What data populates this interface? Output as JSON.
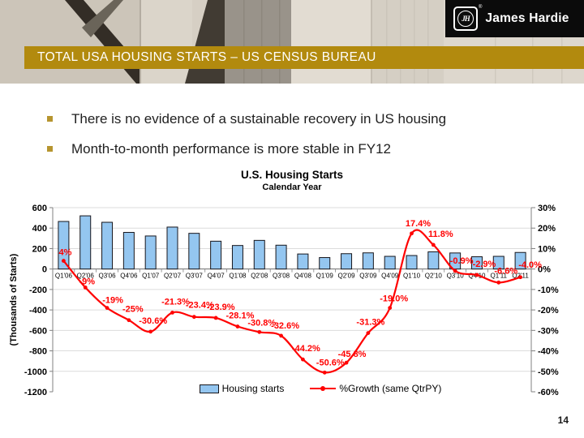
{
  "header": {
    "logo": {
      "monogram": "JH",
      "registered": "®",
      "brand": "James Hardie"
    },
    "title_bar": "TOTAL USA HOUSING STARTS – US CENSUS BUREAU"
  },
  "bullets": [
    "There is no evidence of a sustainable recovery in US housing",
    "Month-to-month performance is more stable in FY12"
  ],
  "page_number": "14",
  "chart_data": {
    "type": "bar+line",
    "title": "U.S. Housing Starts",
    "subtitle": "Calendar Year",
    "left_axis": {
      "label": "(Thousands of Starts)",
      "min": -1200,
      "max": 600,
      "step": 200
    },
    "right_axis": {
      "min": -60,
      "max": 30,
      "step": 10,
      "format": "percent"
    },
    "grid": true,
    "legend_position": "bottom",
    "categories": [
      "Q1'06",
      "Q2'06",
      "Q3'06",
      "Q4'06",
      "Q1'07",
      "Q2'07",
      "Q3'07",
      "Q4'07",
      "Q1'08",
      "Q2'08",
      "Q3'08",
      "Q4'08",
      "Q1'09",
      "Q2'09",
      "Q3'09",
      "Q4'09",
      "Q1'10",
      "Q2'10",
      "Q3'10",
      "Q4'10",
      "Q1'11",
      "Q2'11"
    ],
    "series": [
      {
        "name": "Housing starts",
        "type": "bar",
        "axis": "left",
        "color": "#94C6F0",
        "values": [
          465,
          520,
          457,
          358,
          323,
          410,
          349,
          272,
          230,
          280,
          233,
          147,
          112,
          150,
          158,
          124,
          132,
          168,
          157,
          120,
          124,
          162
        ]
      },
      {
        "name": "%Growth (same QtrPY)",
        "type": "line",
        "axis": "right",
        "color": "#FF0000",
        "values": [
          4,
          -9,
          -19,
          -25,
          -30.6,
          -21.3,
          -23.4,
          -23.9,
          -28.1,
          -30.8,
          -32.6,
          -44.2,
          -50.6,
          -45.8,
          -31.3,
          -19.0,
          17.4,
          11.8,
          -0.9,
          -2.9,
          -6.6,
          -4.0
        ],
        "labels": [
          "4%",
          "-9%",
          "-19%",
          "-25%",
          "-30.6%",
          "-21.3%",
          "-23.4%",
          "-23.9%",
          "-28.1%",
          "-30.8%",
          "-32.6%",
          "-44.2%",
          "-50.6%",
          "-45.8%",
          "-31.3%",
          "-19.0%",
          "17.4%",
          "11.8%",
          "-0.9%",
          "-2.9%",
          "-6.6%",
          "-4.0%"
        ]
      }
    ],
    "legend": [
      "Housing starts",
      "%Growth (same QtrPY)"
    ]
  }
}
